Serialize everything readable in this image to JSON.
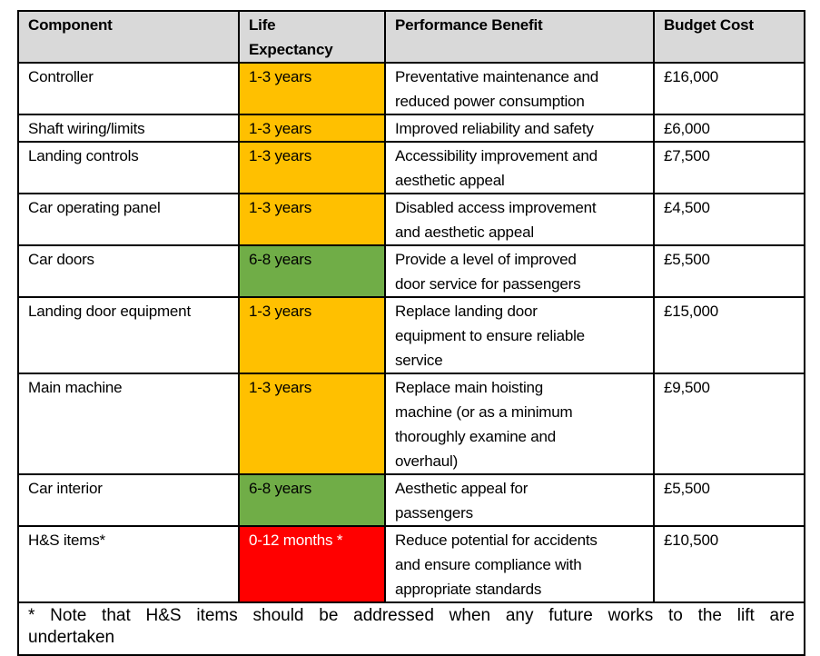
{
  "headers": [
    "Component",
    "Life\nExpectancy",
    "Performance Benefit",
    "Budget Cost"
  ],
  "rows": [
    {
      "component": "Controller",
      "life": "1-3 years",
      "status": "amber",
      "benefit": "Preventative maintenance and\nreduced power consumption",
      "cost": "£16,000"
    },
    {
      "component": "Shaft wiring/limits",
      "life": "1-3 years",
      "status": "amber",
      "benefit": "Improved reliability and safety",
      "cost": "£6,000"
    },
    {
      "component": "Landing controls",
      "life": "1-3 years",
      "status": "amber",
      "benefit": "Accessibility improvement and\naesthetic appeal",
      "cost": "£7,500"
    },
    {
      "component": "Car operating panel",
      "life": "1-3 years",
      "status": "amber",
      "benefit": "Disabled access improvement\nand aesthetic appeal",
      "cost": "£4,500"
    },
    {
      "component": "Car doors",
      "life": "6-8 years",
      "status": "green",
      "benefit": "Provide a level of improved\ndoor service for passengers",
      "cost": "£5,500"
    },
    {
      "component": "Landing door equipment",
      "life": "1-3 years",
      "status": "amber",
      "benefit": "Replace landing door\nequipment to ensure reliable\nservice",
      "cost": "£15,000"
    },
    {
      "component": "Main machine",
      "life": "1-3 years",
      "status": "amber",
      "benefit": "Replace main hoisting\nmachine (or as a minimum\nthoroughly examine and\noverhaul)",
      "cost": "£9,500"
    },
    {
      "component": "Car interior",
      "life": "6-8 years",
      "status": "green",
      "benefit": "Aesthetic appeal for\npassengers",
      "cost": "£5,500"
    },
    {
      "component": "H&S items*",
      "life": "0-12 months *",
      "status": "red",
      "benefit": "Reduce potential for accidents\nand ensure compliance with\nappropriate standards",
      "cost": "£10,500"
    }
  ],
  "note": {
    "line1": "* Note that H&S items should be addressed when any future works to the lift are",
    "line2": "undertaken"
  },
  "colors": {
    "amber": "#ffc000",
    "green": "#70ad47",
    "red": "#ff0000",
    "header": "#d9d9d9"
  }
}
